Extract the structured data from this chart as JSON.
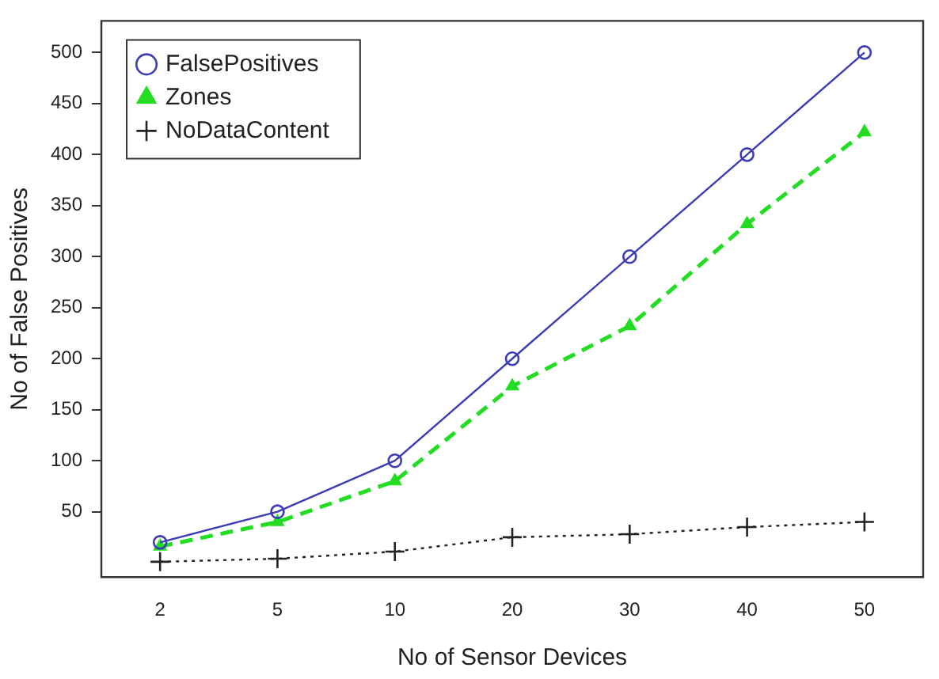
{
  "chart_data": {
    "type": "line",
    "xlabel": "No of Sensor Devices",
    "ylabel": "No of False Positives",
    "categories": [
      "2",
      "5",
      "10",
      "20",
      "30",
      "40",
      "50"
    ],
    "series": [
      {
        "name": "FalsePositives",
        "color": "#3c3cb4",
        "marker": "circle",
        "line_style": "solid",
        "values": [
          20,
          50,
          100,
          200,
          300,
          400,
          500
        ]
      },
      {
        "name": "Zones",
        "color": "#22dd22",
        "marker": "triangle",
        "line_style": "dashed",
        "values": [
          16,
          40,
          80,
          173,
          232,
          332,
          422
        ]
      },
      {
        "name": "NoDataContent",
        "color": "#222222",
        "marker": "cross",
        "line_style": "dotted",
        "values": [
          1,
          4,
          11,
          25,
          28,
          35,
          40
        ]
      }
    ],
    "ylim": [
      -14,
      531
    ],
    "yticks": [
      50,
      100,
      150,
      200,
      250,
      300,
      350,
      400,
      450,
      500
    ],
    "grid": false,
    "legend": "top left"
  }
}
